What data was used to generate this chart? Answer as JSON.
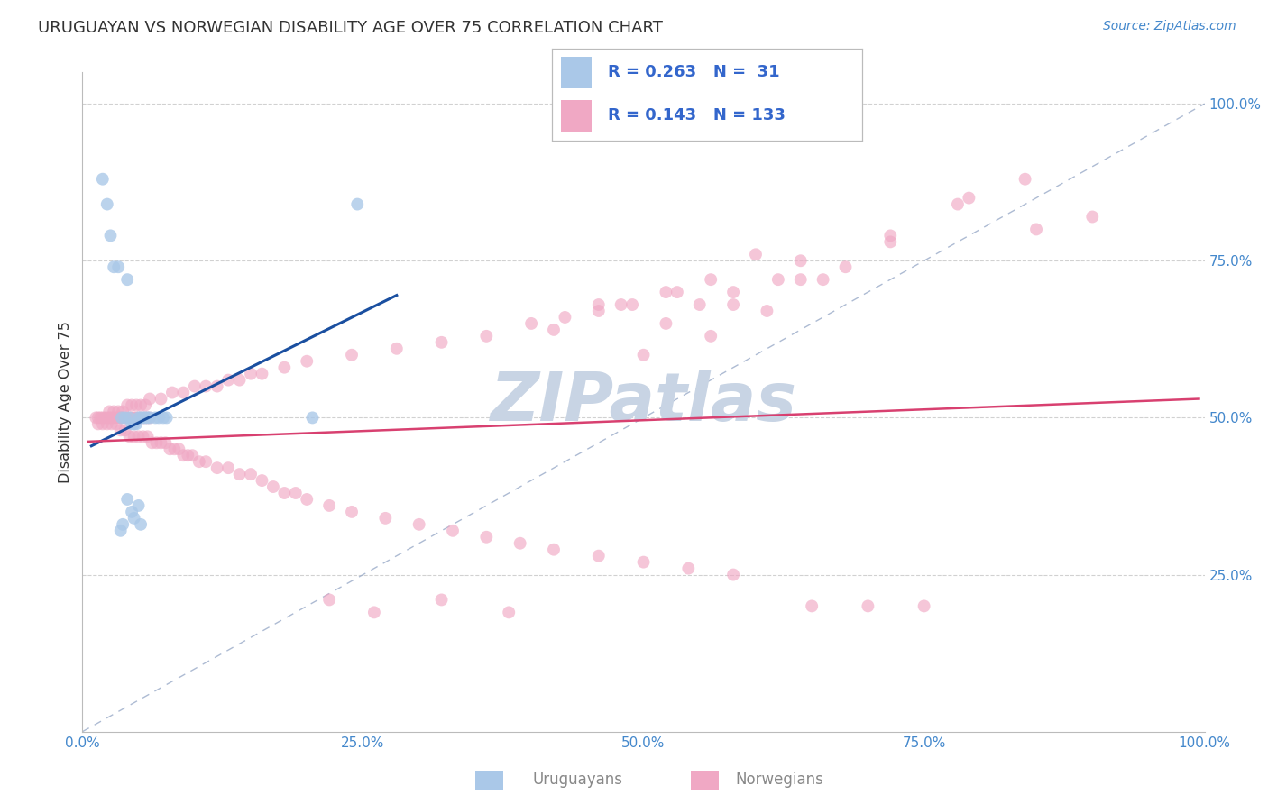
{
  "title": "URUGUAYAN VS NORWEGIAN DISABILITY AGE OVER 75 CORRELATION CHART",
  "source": "Source: ZipAtlas.com",
  "ylabel": "Disability Age Over 75",
  "blue_R": "R = 0.263",
  "blue_N": "N =  31",
  "pink_R": "R = 0.143",
  "pink_N": "N = 133",
  "blue_scatter_color": "#aac8e8",
  "pink_scatter_color": "#f0a8c4",
  "blue_line_color": "#1a4fa0",
  "pink_line_color": "#d84070",
  "diagonal_color": "#99aac8",
  "grid_color": "#cccccc",
  "tick_color": "#4488cc",
  "title_color": "#333333",
  "watermark_color": "#c8d4e4",
  "legend_text_color": "#3366cc",
  "bottom_legend_color": "#888888",
  "x_min": 0.0,
  "x_max": 1.0,
  "y_min": 0.0,
  "y_max": 1.05,
  "uru_x": [
    0.018,
    0.022,
    0.025,
    0.028,
    0.032,
    0.035,
    0.038,
    0.04,
    0.042,
    0.044,
    0.046,
    0.048,
    0.05,
    0.052,
    0.054,
    0.056,
    0.058,
    0.06,
    0.065,
    0.068,
    0.072,
    0.075,
    0.205,
    0.05,
    0.04,
    0.044,
    0.046,
    0.036,
    0.034,
    0.052,
    0.245
  ],
  "uru_y": [
    0.88,
    0.84,
    0.79,
    0.74,
    0.74,
    0.5,
    0.5,
    0.72,
    0.5,
    0.49,
    0.49,
    0.49,
    0.5,
    0.5,
    0.5,
    0.5,
    0.5,
    0.5,
    0.5,
    0.5,
    0.5,
    0.5,
    0.5,
    0.36,
    0.37,
    0.35,
    0.34,
    0.33,
    0.32,
    0.33,
    0.84
  ],
  "nor_x": [
    0.012,
    0.014,
    0.016,
    0.018,
    0.02,
    0.022,
    0.024,
    0.026,
    0.028,
    0.03,
    0.032,
    0.034,
    0.036,
    0.038,
    0.04,
    0.042,
    0.044,
    0.046,
    0.048,
    0.05,
    0.052,
    0.054,
    0.056,
    0.058,
    0.06,
    0.014,
    0.018,
    0.022,
    0.026,
    0.03,
    0.034,
    0.038,
    0.042,
    0.046,
    0.05,
    0.054,
    0.058,
    0.062,
    0.066,
    0.07,
    0.074,
    0.078,
    0.082,
    0.086,
    0.09,
    0.094,
    0.098,
    0.104,
    0.11,
    0.12,
    0.13,
    0.14,
    0.15,
    0.16,
    0.17,
    0.18,
    0.19,
    0.2,
    0.22,
    0.24,
    0.27,
    0.3,
    0.33,
    0.36,
    0.39,
    0.42,
    0.46,
    0.5,
    0.54,
    0.58,
    0.024,
    0.028,
    0.032,
    0.036,
    0.04,
    0.044,
    0.048,
    0.052,
    0.056,
    0.06,
    0.07,
    0.08,
    0.09,
    0.1,
    0.11,
    0.12,
    0.13,
    0.14,
    0.15,
    0.16,
    0.18,
    0.2,
    0.24,
    0.28,
    0.32,
    0.36,
    0.4,
    0.43,
    0.46,
    0.49,
    0.52,
    0.55,
    0.58,
    0.62,
    0.48,
    0.52,
    0.56,
    0.6,
    0.64,
    0.42,
    0.46,
    0.53,
    0.58,
    0.64,
    0.68,
    0.72,
    0.78,
    0.84,
    0.5,
    0.56,
    0.61,
    0.66,
    0.72,
    0.79,
    0.85,
    0.9,
    0.32,
    0.38,
    0.22,
    0.26,
    0.65,
    0.7,
    0.75
  ],
  "nor_y": [
    0.5,
    0.5,
    0.5,
    0.5,
    0.5,
    0.5,
    0.5,
    0.5,
    0.5,
    0.5,
    0.5,
    0.5,
    0.5,
    0.5,
    0.5,
    0.5,
    0.5,
    0.5,
    0.5,
    0.5,
    0.5,
    0.5,
    0.5,
    0.5,
    0.5,
    0.49,
    0.49,
    0.49,
    0.49,
    0.49,
    0.48,
    0.48,
    0.47,
    0.47,
    0.47,
    0.47,
    0.47,
    0.46,
    0.46,
    0.46,
    0.46,
    0.45,
    0.45,
    0.45,
    0.44,
    0.44,
    0.44,
    0.43,
    0.43,
    0.42,
    0.42,
    0.41,
    0.41,
    0.4,
    0.39,
    0.38,
    0.38,
    0.37,
    0.36,
    0.35,
    0.34,
    0.33,
    0.32,
    0.31,
    0.3,
    0.29,
    0.28,
    0.27,
    0.26,
    0.25,
    0.51,
    0.51,
    0.51,
    0.51,
    0.52,
    0.52,
    0.52,
    0.52,
    0.52,
    0.53,
    0.53,
    0.54,
    0.54,
    0.55,
    0.55,
    0.55,
    0.56,
    0.56,
    0.57,
    0.57,
    0.58,
    0.59,
    0.6,
    0.61,
    0.62,
    0.63,
    0.65,
    0.66,
    0.67,
    0.68,
    0.65,
    0.68,
    0.7,
    0.72,
    0.68,
    0.7,
    0.72,
    0.76,
    0.75,
    0.64,
    0.68,
    0.7,
    0.68,
    0.72,
    0.74,
    0.79,
    0.84,
    0.88,
    0.6,
    0.63,
    0.67,
    0.72,
    0.78,
    0.85,
    0.8,
    0.82,
    0.21,
    0.19,
    0.21,
    0.19,
    0.2,
    0.2,
    0.2
  ],
  "blue_line_x": [
    0.008,
    0.28
  ],
  "blue_line_y": [
    0.455,
    0.695
  ],
  "pink_line_x": [
    0.005,
    0.995
  ],
  "pink_line_y": [
    0.462,
    0.53
  ]
}
